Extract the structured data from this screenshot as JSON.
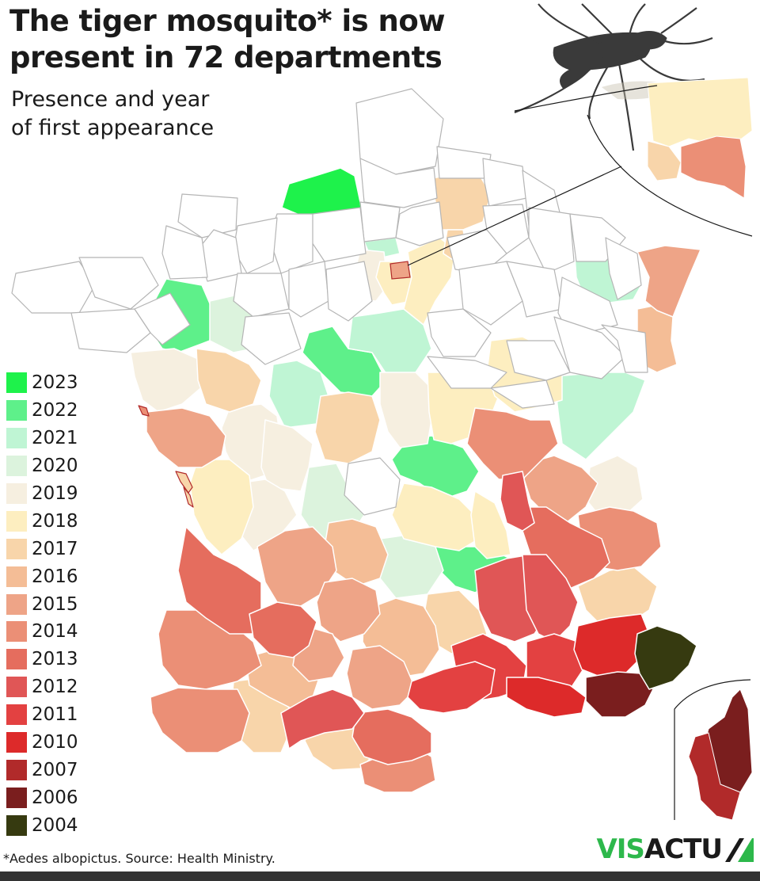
{
  "title_line1": "The tiger mosquito* is now",
  "title_line2": "present in 72 departments",
  "subtitle_line1": "Presence and year",
  "subtitle_line2": "of first appearance",
  "footnote": "*Aedes albopictus. Source: Health Ministry.",
  "logo": {
    "part1": "VIS",
    "part2": "ACTU",
    "color1": "#2db84b",
    "color2": "#1a1a1a"
  },
  "colors": {
    "absent": "#ffffff",
    "border": "#c8c8c8",
    "ink": "#1a1a1a"
  },
  "legend": [
    {
      "year": "2023",
      "color": "#1ef24b"
    },
    {
      "year": "2022",
      "color": "#5ef08a"
    },
    {
      "year": "2021",
      "color": "#bff5d4"
    },
    {
      "year": "2020",
      "color": "#dcf3dd"
    },
    {
      "year": "2019",
      "color": "#f6efe0"
    },
    {
      "year": "2018",
      "color": "#fdeec0"
    },
    {
      "year": "2017",
      "color": "#f8d5aa"
    },
    {
      "year": "2016",
      "color": "#f4bd96"
    },
    {
      "year": "2015",
      "color": "#eea487"
    },
    {
      "year": "2014",
      "color": "#eb8f76"
    },
    {
      "year": "2013",
      "color": "#e56d5e"
    },
    {
      "year": "2012",
      "color": "#e05656"
    },
    {
      "year": "2011",
      "color": "#e34141"
    },
    {
      "year": "2010",
      "color": "#dd2a2a"
    },
    {
      "year": "2007",
      "color": "#b12a2a"
    },
    {
      "year": "2006",
      "color": "#7a1e1e"
    },
    {
      "year": "2004",
      "color": "#363a10"
    }
  ]
}
